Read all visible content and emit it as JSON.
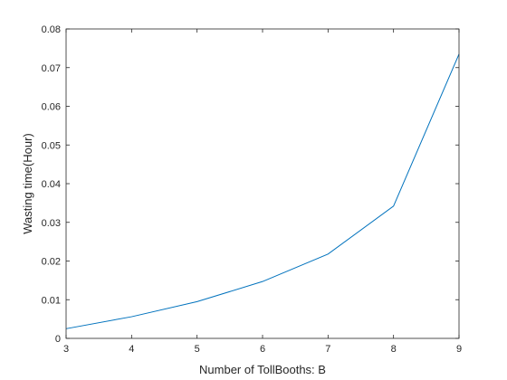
{
  "chart_data": {
    "type": "line",
    "title": "",
    "xlabel": "Number of TollBooths: B",
    "ylabel": "Wasting time(Hour)",
    "xlim": [
      3,
      9
    ],
    "ylim": [
      0,
      0.08
    ],
    "xticks": [
      3,
      4,
      5,
      6,
      7,
      8,
      9
    ],
    "xtick_labels": [
      "3",
      "4",
      "5",
      "6",
      "7",
      "8",
      "9"
    ],
    "yticks": [
      0,
      0.01,
      0.02,
      0.03,
      0.04,
      0.05,
      0.06,
      0.07,
      0.08
    ],
    "ytick_labels": [
      "0",
      "0.01",
      "0.02",
      "0.03",
      "0.04",
      "0.05",
      "0.06",
      "0.07",
      "0.08"
    ],
    "grid": false,
    "series": [
      {
        "color": "#0072BD",
        "x": [
          3,
          4,
          5,
          6,
          7,
          8,
          9
        ],
        "y": [
          0.0025,
          0.0056,
          0.0095,
          0.0147,
          0.0218,
          0.0342,
          0.0735
        ]
      }
    ]
  }
}
